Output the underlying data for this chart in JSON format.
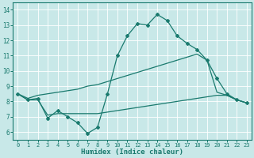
{
  "bg_color": "#c8e8e8",
  "line_color": "#1a7a6e",
  "xlabel": "Humidex (Indice chaleur)",
  "xlim": [
    -0.5,
    23.5
  ],
  "ylim": [
    5.5,
    14.5
  ],
  "xticks": [
    0,
    1,
    2,
    3,
    4,
    5,
    6,
    7,
    8,
    9,
    10,
    11,
    12,
    13,
    14,
    15,
    16,
    17,
    18,
    19,
    20,
    21,
    22,
    23
  ],
  "yticks": [
    6,
    7,
    8,
    9,
    10,
    11,
    12,
    13,
    14
  ],
  "line1_x": [
    0,
    1,
    2,
    3,
    4,
    5,
    6,
    7,
    8,
    9,
    10,
    11,
    12,
    13,
    14,
    15,
    16,
    17,
    18,
    19,
    20,
    21,
    22,
    23
  ],
  "line1_y": [
    8.5,
    8.1,
    8.2,
    6.9,
    7.4,
    7.0,
    6.6,
    5.9,
    6.3,
    8.5,
    11.0,
    12.3,
    13.1,
    13.0,
    13.7,
    13.3,
    12.3,
    11.8,
    11.4,
    10.7,
    9.5,
    8.5,
    8.1,
    7.9
  ],
  "line2_x": [
    0,
    1,
    2,
    3,
    4,
    5,
    6,
    7,
    8,
    9,
    10,
    11,
    12,
    13,
    14,
    15,
    16,
    17,
    18,
    19,
    20,
    21,
    22,
    23
  ],
  "line2_y": [
    8.5,
    8.2,
    8.4,
    8.5,
    8.6,
    8.7,
    8.8,
    9.0,
    9.1,
    9.3,
    9.5,
    9.7,
    9.9,
    10.1,
    10.3,
    10.5,
    10.7,
    10.9,
    11.1,
    10.7,
    8.6,
    8.4,
    8.1,
    7.9
  ],
  "line3_x": [
    0,
    1,
    2,
    3,
    4,
    5,
    6,
    7,
    8,
    9,
    10,
    11,
    12,
    13,
    14,
    15,
    16,
    17,
    18,
    19,
    20,
    21,
    22,
    23
  ],
  "line3_y": [
    8.5,
    8.1,
    8.1,
    7.1,
    7.2,
    7.2,
    7.2,
    7.2,
    7.2,
    7.3,
    7.4,
    7.5,
    7.6,
    7.7,
    7.8,
    7.9,
    8.0,
    8.1,
    8.2,
    8.3,
    8.4,
    8.4,
    8.1,
    7.9
  ]
}
